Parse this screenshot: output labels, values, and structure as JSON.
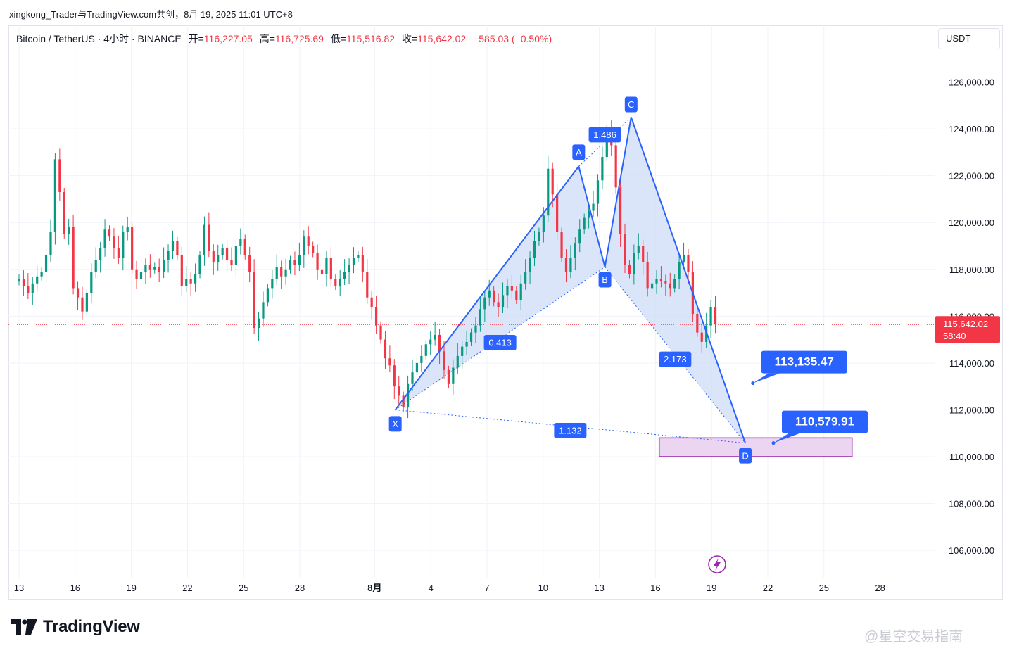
{
  "credit": "xingkong_Trader与TradingView.com共创，8月 19, 2025 11:01 UTC+8",
  "legend": {
    "symbol": "Bitcoin / TetherUS · 4小时 · BINANCE",
    "open_label": "开=",
    "open": "116,227.05",
    "high_label": "高=",
    "high": "116,725.69",
    "low_label": "低=",
    "low": "115,516.82",
    "close_label": "收=",
    "close": "115,642.02",
    "change": "−585.03 (−0.50%)"
  },
  "currency": "USDT",
  "brand": "TradingView",
  "watermark": "@星空交易指南",
  "colors": {
    "up": "#089981",
    "down": "#f23645",
    "pattern": "#2962ff",
    "pattern_fill": "#cfdcf7",
    "box": "#9c27b0",
    "box_fill": "#ecd5f1"
  },
  "chart_data": {
    "type": "candlestick",
    "symbol": "BTCUSDT",
    "interval": "4h",
    "ylim": [
      105000,
      127500
    ],
    "y_ticks": [
      {
        "value": 126000,
        "label": "126,000.00"
      },
      {
        "value": 124000,
        "label": "124,000.00"
      },
      {
        "value": 122000,
        "label": "122,000.00"
      },
      {
        "value": 120000,
        "label": "120,000.00"
      },
      {
        "value": 118000,
        "label": "118,000.00"
      },
      {
        "value": 116000,
        "label": "116,000.00"
      },
      {
        "value": 114000,
        "label": "114,000.00"
      },
      {
        "value": 112000,
        "label": "112,000.00"
      },
      {
        "value": 110000,
        "label": "110,000.00"
      },
      {
        "value": 108000,
        "label": "108,000.00"
      },
      {
        "value": 106000,
        "label": "106,000.00"
      }
    ],
    "x_ticks": [
      {
        "day": 0,
        "label": "13"
      },
      {
        "day": 3,
        "label": "16"
      },
      {
        "day": 6,
        "label": "19"
      },
      {
        "day": 9,
        "label": "22"
      },
      {
        "day": 12,
        "label": "25"
      },
      {
        "day": 15,
        "label": "28"
      },
      {
        "day": 19,
        "label": "8月"
      },
      {
        "day": 22,
        "label": "4"
      },
      {
        "day": 25,
        "label": "7"
      },
      {
        "day": 28,
        "label": "10"
      },
      {
        "day": 31,
        "label": "13"
      },
      {
        "day": 34,
        "label": "16"
      },
      {
        "day": 37,
        "label": "19"
      },
      {
        "day": 40,
        "label": "22"
      },
      {
        "day": 43,
        "label": "25"
      },
      {
        "day": 46,
        "label": "28"
      }
    ],
    "last_price": {
      "value": 115642.02,
      "label": "115,642.02",
      "countdown": "58:40"
    },
    "closes": [
      117600,
      117300,
      117000,
      117400,
      117700,
      117900,
      118600,
      119600,
      122700,
      121300,
      119500,
      119800,
      117200,
      116800,
      116200,
      117000,
      117900,
      118400,
      118900,
      119700,
      119400,
      118900,
      118500,
      119600,
      119800,
      118000,
      117600,
      117900,
      118200,
      118000,
      118100,
      117900,
      118400,
      118800,
      119200,
      118600,
      117300,
      117600,
      117400,
      117800,
      118600,
      119900,
      118800,
      118300,
      118600,
      118900,
      118400,
      118200,
      119000,
      119300,
      118600,
      117900,
      115500,
      115900,
      116600,
      117200,
      117600,
      118100,
      117700,
      118000,
      118400,
      118200,
      118600,
      119400,
      119000,
      118700,
      118000,
      117800,
      118500,
      117600,
      117300,
      117600,
      117900,
      118200,
      118500,
      118600,
      117900,
      116800,
      116400,
      115600,
      115000,
      114200,
      113900,
      113000,
      112600,
      112100,
      113100,
      113600,
      114000,
      114300,
      114800,
      115000,
      115200,
      114500,
      113700,
      113100,
      113800,
      114300,
      114700,
      114900,
      115300,
      115600,
      116300,
      116800,
      117100,
      116600,
      116400,
      116900,
      117300,
      117100,
      116700,
      117400,
      117900,
      118500,
      119200,
      119600,
      120300,
      122300,
      121200,
      119600,
      118500,
      117900,
      118500,
      119100,
      119700,
      120200,
      120500,
      120800,
      121800,
      122800,
      124000,
      123300,
      121500,
      119500,
      118200,
      117800,
      118700,
      119000,
      118300,
      117200,
      117400,
      117600,
      117500,
      117400,
      117200,
      117600,
      118300,
      118600,
      117900,
      116100,
      115300,
      114900,
      115600,
      116400,
      115642
    ],
    "harmonic_pattern": {
      "name": "Bat",
      "points": [
        {
          "label": "X",
          "day": 20.1,
          "price": 112000
        },
        {
          "label": "A",
          "day": 29.9,
          "price": 122400
        },
        {
          "label": "B",
          "day": 31.3,
          "price": 118100
        },
        {
          "label": "C",
          "day": 32.7,
          "price": 124500
        },
        {
          "label": "D",
          "day": 38.8,
          "price": 110580
        }
      ],
      "ratios": [
        {
          "label": "1.486",
          "between": "A-C"
        },
        {
          "label": "0.413",
          "between": "X-B"
        },
        {
          "label": "2.173",
          "between": "B-D"
        },
        {
          "label": "1.132",
          "between": "X-D"
        }
      ]
    },
    "target_zone": {
      "from_day": 34.2,
      "to_day": 44.5,
      "high": 110800,
      "low": 110000
    },
    "price_callouts": [
      {
        "label": "113,135.47",
        "day": 39.2,
        "price": 113135.47
      },
      {
        "label": "110,579.91",
        "day": 40.3,
        "price": 110579.91
      }
    ]
  }
}
